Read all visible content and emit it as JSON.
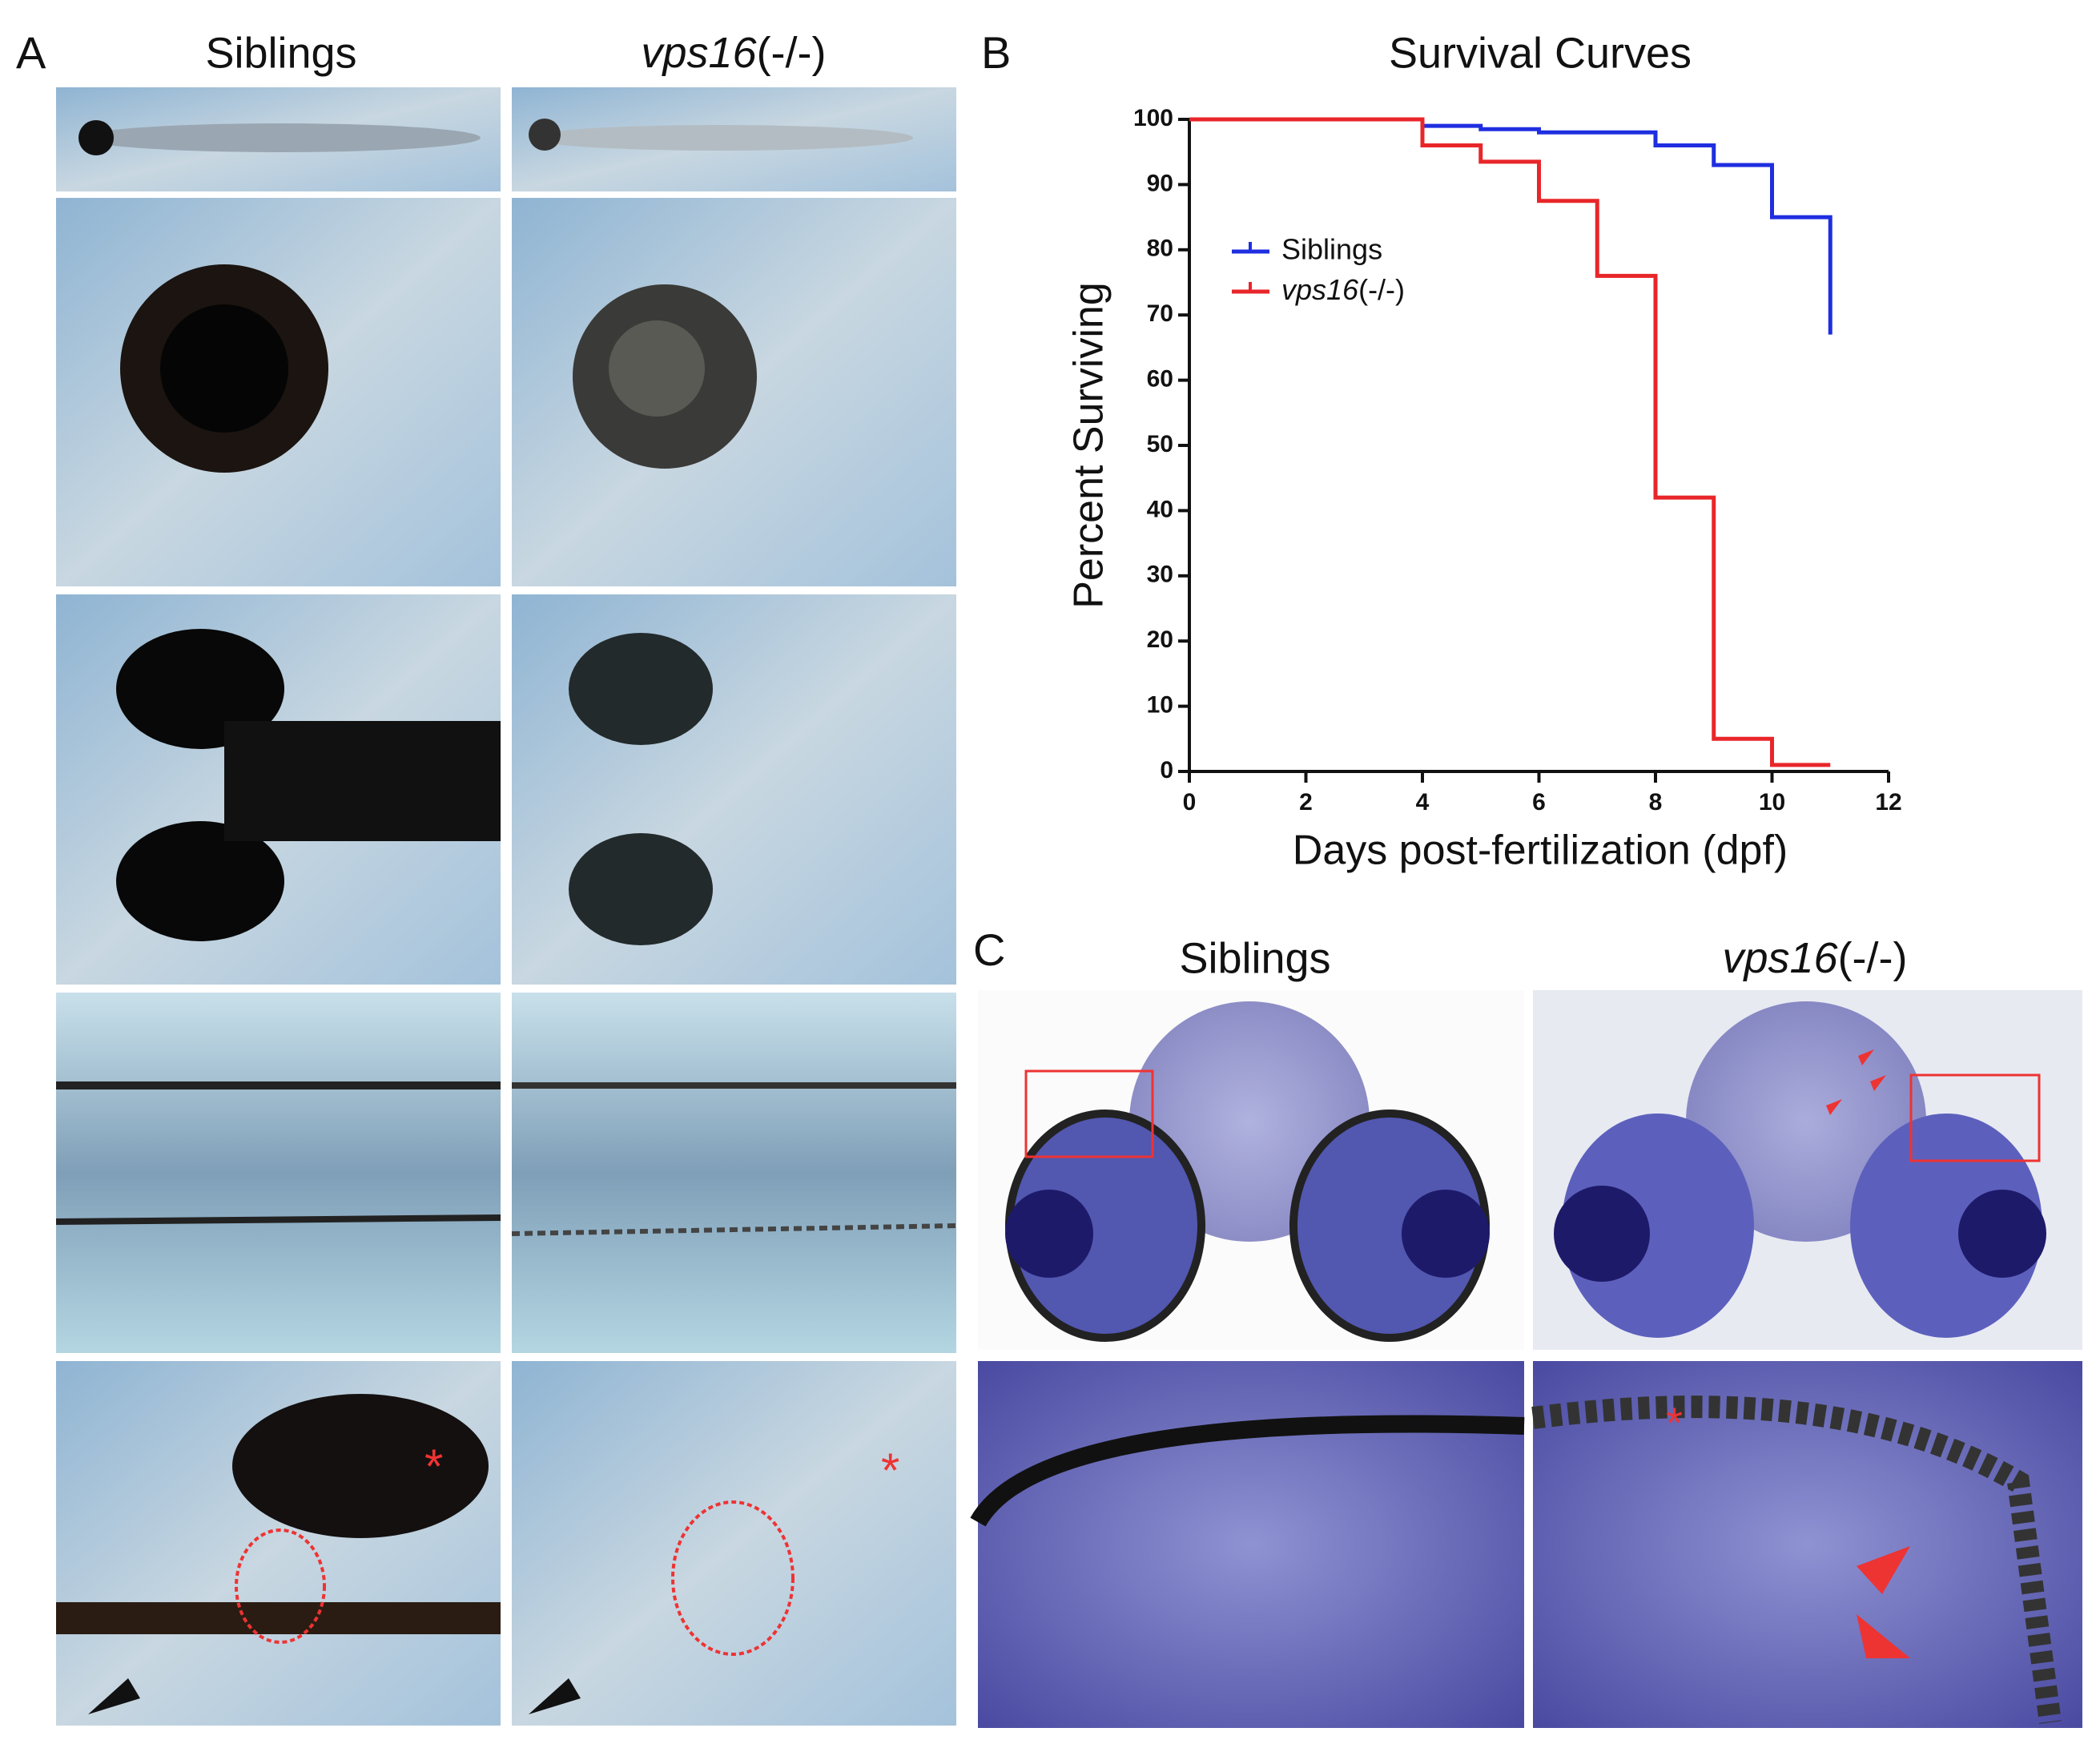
{
  "panel_a": {
    "label": "A",
    "columns": [
      "Siblings",
      "vps16(-/-)"
    ]
  },
  "panel_b": {
    "label": "B"
  },
  "panel_c": {
    "label": "C",
    "columns": [
      "Siblings",
      "vps16(-/-)"
    ]
  },
  "chart_data": {
    "type": "line",
    "title": "Survival Curves",
    "x_label": "Days post-fertilization (dpf)",
    "y_label": "Percent Surviving",
    "x": [
      0,
      4,
      5,
      6,
      7,
      8,
      9,
      10,
      11
    ],
    "series": [
      {
        "name": "Siblings",
        "color": "#1f2ee0",
        "values": [
          100,
          99,
          98.5,
          98,
          98,
          96,
          93,
          85,
          67
        ]
      },
      {
        "name": "vps16(-/-)",
        "color": "#e8262a",
        "values": [
          100,
          96,
          93.5,
          87.5,
          76,
          42,
          5,
          1,
          1
        ]
      }
    ],
    "xlim": [
      0,
      12
    ],
    "xticks": [
      0,
      2,
      4,
      6,
      8,
      10,
      12
    ],
    "ylim": [
      0,
      100
    ],
    "yticks": [
      0,
      10,
      20,
      30,
      40,
      50,
      60,
      70,
      80,
      90,
      100
    ],
    "step": true
  }
}
